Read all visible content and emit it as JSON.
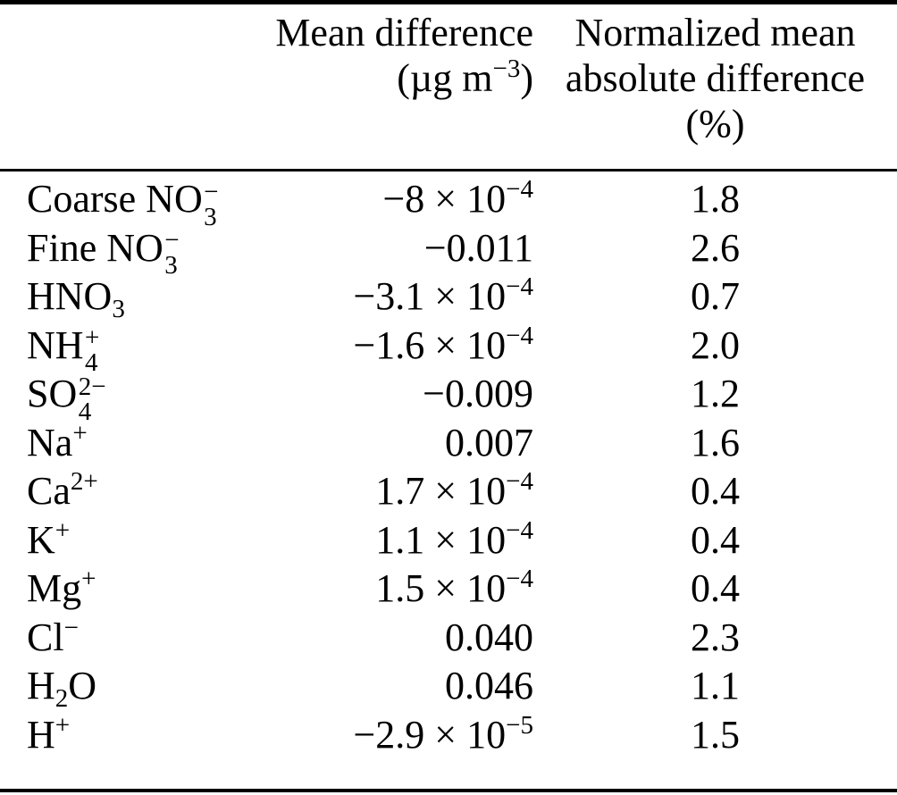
{
  "table": {
    "header": {
      "col2_lines": [
        [
          {
            "t": "Mean difference"
          }
        ],
        [
          {
            "t": "(µg m"
          },
          {
            "sup": "−3"
          },
          {
            "t": ")"
          }
        ]
      ],
      "col3_lines": [
        [
          {
            "t": "Normalized mean"
          }
        ],
        [
          {
            "t": "absolute difference"
          }
        ],
        [
          {
            "t": "(%)"
          }
        ]
      ]
    },
    "rows": [
      {
        "species": [
          {
            "t": "Coarse NO"
          },
          {
            "sub": "3",
            "sup": "−"
          }
        ],
        "mean_diff": [
          {
            "t": "−8 × 10"
          },
          {
            "sup": "−4"
          }
        ],
        "nmad": "1.8"
      },
      {
        "species": [
          {
            "t": "Fine NO"
          },
          {
            "sub": "3",
            "sup": "−"
          }
        ],
        "mean_diff": [
          {
            "t": "−0.011"
          }
        ],
        "nmad": "2.6"
      },
      {
        "species": [
          {
            "t": "HNO"
          },
          {
            "sub": "3"
          }
        ],
        "mean_diff": [
          {
            "t": "−3.1 × 10"
          },
          {
            "sup": "−4"
          }
        ],
        "nmad": "0.7"
      },
      {
        "species": [
          {
            "t": "NH"
          },
          {
            "sub": "4",
            "sup": "+"
          }
        ],
        "mean_diff": [
          {
            "t": "−1.6 × 10"
          },
          {
            "sup": "−4"
          }
        ],
        "nmad": "2.0"
      },
      {
        "species": [
          {
            "t": "SO"
          },
          {
            "sub": "4",
            "sup": "2−"
          }
        ],
        "mean_diff": [
          {
            "t": "−0.009"
          }
        ],
        "nmad": "1.2"
      },
      {
        "species": [
          {
            "t": "Na"
          },
          {
            "sup": "+"
          }
        ],
        "mean_diff": [
          {
            "t": "0.007"
          }
        ],
        "nmad": "1.6"
      },
      {
        "species": [
          {
            "t": "Ca"
          },
          {
            "sup": "2+"
          }
        ],
        "mean_diff": [
          {
            "t": "1.7 × 10"
          },
          {
            "sup": "−4"
          }
        ],
        "nmad": "0.4"
      },
      {
        "species": [
          {
            "t": "K"
          },
          {
            "sup": "+"
          }
        ],
        "mean_diff": [
          {
            "t": "1.1 × 10"
          },
          {
            "sup": "−4"
          }
        ],
        "nmad": "0.4"
      },
      {
        "species": [
          {
            "t": "Mg"
          },
          {
            "sup": "+"
          }
        ],
        "mean_diff": [
          {
            "t": "1.5 × 10"
          },
          {
            "sup": "−4"
          }
        ],
        "nmad": "0.4"
      },
      {
        "species": [
          {
            "t": "Cl"
          },
          {
            "sup": "−"
          }
        ],
        "mean_diff": [
          {
            "t": "0.040"
          }
        ],
        "nmad": "2.3"
      },
      {
        "species": [
          {
            "t": "H"
          },
          {
            "sub": "2"
          },
          {
            "t": "O"
          }
        ],
        "mean_diff": [
          {
            "t": "0.046"
          }
        ],
        "nmad": "1.1"
      },
      {
        "species": [
          {
            "t": "H"
          },
          {
            "sup": "+"
          }
        ],
        "mean_diff": [
          {
            "t": "−2.9 × 10"
          },
          {
            "sup": "−5"
          }
        ],
        "nmad": "1.5"
      }
    ],
    "colors": {
      "text": "#000000",
      "rule": "#000000",
      "background": "#ffffff"
    }
  }
}
